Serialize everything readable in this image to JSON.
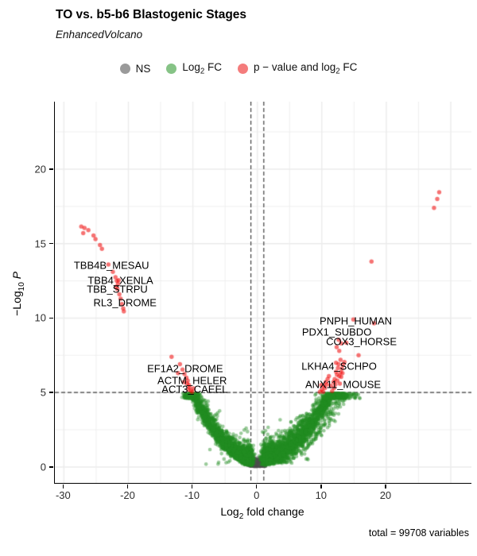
{
  "page": {
    "title": "TO vs. b5-b6 Blastogenic Stages",
    "subtitle": "EnhancedVolcano",
    "caption": "total = 99708 variables"
  },
  "chart_data": {
    "type": "scatter",
    "variant": "volcano",
    "title": "TO vs. b5-b6 Blastogenic Stages",
    "subtitle": "EnhancedVolcano",
    "caption": "total = 99708 variables",
    "total_variables": 99708,
    "xlabel_parts": {
      "pre": "Log",
      "sub": "2",
      "post": " fold change"
    },
    "ylabel_parts": {
      "pre": "−Log",
      "sub": "10",
      "italic": "P"
    },
    "xlim": [
      -31.4,
      33.2
    ],
    "ylim": [
      -1.07,
      24.53
    ],
    "x_ticks": [
      -30,
      -20,
      -10,
      0,
      10,
      20
    ],
    "y_ticks": [
      0,
      5,
      10,
      15,
      20
    ],
    "x_minor_step": 5,
    "y_minor_step": 2.5,
    "grid": true,
    "legend_position": "top",
    "thresholds": {
      "fc_lines": [
        -1,
        1
      ],
      "p_line": 5
    },
    "legend": [
      {
        "name": "ns",
        "label_pre": "NS",
        "label_sub": "",
        "label_post": "",
        "key_color": "#9a9a9a"
      },
      {
        "name": "log2fc",
        "label_pre": "Log",
        "label_sub": "2",
        "label_post": " FC",
        "key_color": "#86c386"
      },
      {
        "name": "pvalue-and-log2fc",
        "label_pre": "p − value and log",
        "label_sub": "2",
        "label_post": " FC",
        "key_color": "#f47c7c"
      }
    ],
    "style": {
      "ns_color": "#4d4d4d",
      "fc_color": "#228b22",
      "p_fc_color": "#ee0000",
      "point_alpha": 0.5,
      "grid_color": "#ebebeb",
      "axis_color": "#000000",
      "tick_text_color": "#2e2e2e",
      "threshold_color": "#3f3f3f"
    },
    "labeled_genes": [
      {
        "name": "TBB4B_MESAU",
        "x": -22.5,
        "y": 13.55
      },
      {
        "name": "TBB4_XENLA",
        "x": -21.1,
        "y": 12.53
      },
      {
        "name": "TBB_STRPU",
        "x": -21.6,
        "y": 11.95
      },
      {
        "name": "RL3_DROME",
        "x": -20.4,
        "y": 11.04
      },
      {
        "name": "EF1A2_DROME",
        "x": -11.08,
        "y": 6.61
      },
      {
        "name": "ACTM_HELER",
        "x": -9.98,
        "y": 5.81
      },
      {
        "name": "ACT3_CAEEL",
        "x": -9.6,
        "y": 5.23
      },
      {
        "name": "PNPH_HUMAN",
        "x": 15.39,
        "y": 9.81
      },
      {
        "name": "PDX1_SUBDO",
        "x": 12.44,
        "y": 9.07
      },
      {
        "name": "COX3_HORSE",
        "x": 16.26,
        "y": 8.43
      },
      {
        "name": "LKHA4_SCHPO",
        "x": 12.81,
        "y": 6.77
      },
      {
        "name": "ANX11_MOUSE",
        "x": 13.42,
        "y": 5.55
      }
    ],
    "red_points": [
      [
        -27.3,
        16.15
      ],
      [
        -26.8,
        16.05
      ],
      [
        -26.2,
        15.9
      ],
      [
        -27.0,
        15.7
      ],
      [
        -25.4,
        15.55
      ],
      [
        -25.1,
        15.3
      ],
      [
        -24.4,
        14.9
      ],
      [
        -24.1,
        14.65
      ],
      [
        -23.1,
        13.6
      ],
      [
        -22.4,
        13.1
      ],
      [
        -22.0,
        12.75
      ],
      [
        -21.8,
        12.5
      ],
      [
        -21.6,
        12.3
      ],
      [
        -21.9,
        12.1
      ],
      [
        -21.7,
        11.95
      ],
      [
        -21.5,
        12.55
      ],
      [
        -21.4,
        11.6
      ],
      [
        -21.2,
        11.3
      ],
      [
        -21.0,
        10.95
      ],
      [
        -20.8,
        10.65
      ],
      [
        -20.7,
        10.45
      ],
      [
        -13.3,
        7.4
      ],
      [
        -12.0,
        6.9
      ],
      [
        -11.6,
        6.55
      ],
      [
        -11.3,
        6.25
      ],
      [
        -11.0,
        6.0
      ],
      [
        -10.8,
        5.8
      ],
      [
        -10.9,
        5.6
      ],
      [
        -10.6,
        5.5
      ],
      [
        -10.5,
        5.35
      ],
      [
        -10.7,
        5.2
      ],
      [
        -10.3,
        5.12
      ],
      [
        -10.1,
        5.05
      ],
      [
        -9.9,
        5.28
      ],
      [
        -11.4,
        5.7
      ],
      [
        -12.3,
        6.3
      ],
      [
        27.4,
        17.4
      ],
      [
        27.9,
        18.0
      ],
      [
        28.2,
        18.45
      ],
      [
        17.7,
        13.8
      ],
      [
        14.9,
        9.9
      ],
      [
        18.1,
        9.65
      ],
      [
        12.6,
        8.55
      ],
      [
        13.0,
        8.3
      ],
      [
        12.3,
        8.05
      ],
      [
        12.7,
        7.8
      ],
      [
        15.7,
        7.5
      ],
      [
        12.2,
        7.0
      ],
      [
        13.8,
        8.35
      ],
      [
        9.7,
        5.05
      ],
      [
        10.0,
        5.2
      ],
      [
        10.3,
        5.45
      ],
      [
        10.6,
        5.7
      ],
      [
        10.2,
        5.05
      ],
      [
        10.9,
        5.9
      ],
      [
        11.1,
        6.1
      ],
      [
        10.5,
        5.3
      ],
      [
        10.8,
        5.55
      ],
      [
        9.9,
        5.5
      ],
      [
        11.6,
        5.1
      ],
      [
        11.9,
        5.3
      ],
      [
        12.1,
        5.55
      ],
      [
        12.4,
        5.8
      ],
      [
        12.7,
        6.1
      ],
      [
        12.9,
        6.35
      ],
      [
        13.1,
        6.6
      ],
      [
        13.3,
        6.85
      ],
      [
        12.2,
        6.4
      ],
      [
        12.5,
        6.65
      ],
      [
        12.0,
        5.9
      ],
      [
        13.5,
        7.05
      ],
      [
        12.8,
        5.6
      ],
      [
        13.0,
        6.05
      ],
      [
        11.8,
        5.7
      ],
      [
        12.35,
        6.2
      ],
      [
        12.6,
        6.9
      ],
      [
        13.2,
        6.3
      ],
      [
        11.4,
        5.45
      ],
      [
        12.9,
        7.2
      ]
    ],
    "generated_clouds": {
      "seed": 42,
      "ns_center": {
        "count": 850,
        "x_sigma": 0.5,
        "x_clip": 1.5,
        "y_base": 0.03,
        "y_sigma": 0.16,
        "y_max": 0.95
      },
      "green_left": {
        "count": 2500,
        "curve_a": 0.0453,
        "m_min": 1.15,
        "m_span": 9.9,
        "m_pow": 1.9,
        "y_cap": 4.95
      },
      "green_right": {
        "count": 3300,
        "curve_a": 0.0323,
        "curve_b": 0.02,
        "m_min": 1.15,
        "m_span": 12.3,
        "m_pow": 1.9,
        "outer_frac": 0.13,
        "outer_shift": 1.3,
        "y_cap": 4.95
      },
      "green_stragglers": {
        "count": 30,
        "x_min": 2,
        "x_span": 6,
        "y_min": 0.15,
        "y_span": 1.2
      }
    }
  }
}
